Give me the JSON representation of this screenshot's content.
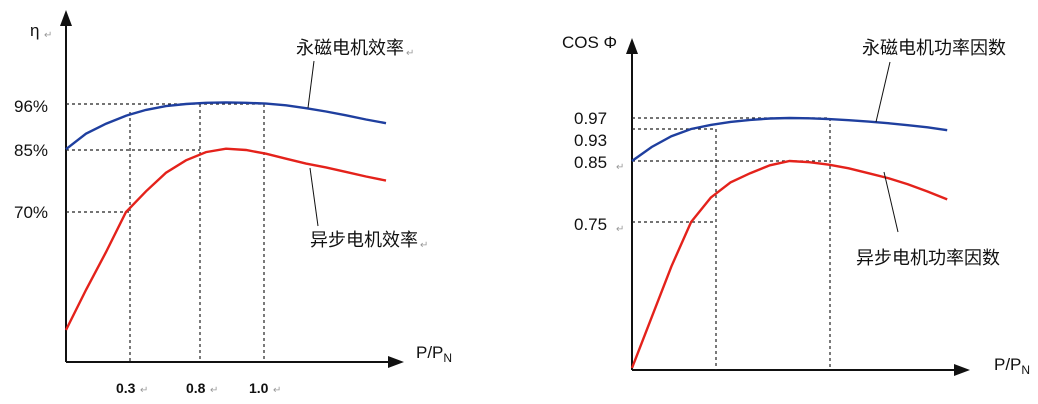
{
  "chart_data": [
    {
      "type": "line",
      "ylabel": "η",
      "xlabel": "P/P",
      "xlabel_sub": "N",
      "x_ticks": [
        "0.3",
        "0.8",
        "1.0"
      ],
      "y_ticks": [
        "96%",
        "85%",
        "70%"
      ],
      "series": [
        {
          "name": "永磁电机效率",
          "color": "#1f3f9f",
          "x": [
            0.0,
            0.1,
            0.2,
            0.3,
            0.4,
            0.5,
            0.6,
            0.7,
            0.8,
            0.9,
            1.0,
            1.1,
            1.2,
            1.3,
            1.4,
            1.5,
            1.6
          ],
          "y": [
            85.2,
            88.9,
            91.3,
            93.2,
            94.6,
            95.5,
            96.0,
            96.3,
            96.4,
            96.3,
            96.1,
            95.7,
            95.0,
            94.2,
            93.3,
            92.3,
            91.4
          ]
        },
        {
          "name": "异步电机效率",
          "color": "#e4221b",
          "x": [
            0.0,
            0.1,
            0.2,
            0.3,
            0.4,
            0.5,
            0.6,
            0.7,
            0.8,
            0.9,
            1.0,
            1.1,
            1.2,
            1.3,
            1.4,
            1.5,
            1.6
          ],
          "y": [
            45.0,
            53.5,
            61.5,
            70.0,
            75.0,
            79.5,
            82.5,
            84.5,
            85.3,
            85.0,
            84.1,
            82.9,
            81.7,
            80.8,
            79.7,
            78.6,
            77.6
          ]
        }
      ]
    },
    {
      "type": "line",
      "ylabel": "COS Φ",
      "xlabel": "P/P",
      "xlabel_sub": "N",
      "x_ticks": [],
      "y_ticks": [
        "0.97",
        "0.93",
        "0.85",
        "0.75"
      ],
      "series": [
        {
          "name": "永磁电机功率因数",
          "color": "#1f3f9f",
          "x": [
            0.0,
            0.1,
            0.2,
            0.3,
            0.4,
            0.5,
            0.6,
            0.7,
            0.8,
            0.9,
            1.0,
            1.1,
            1.2,
            1.3,
            1.4,
            1.5,
            1.6
          ],
          "y": [
            0.85,
            0.885,
            0.912,
            0.93,
            0.945,
            0.956,
            0.963,
            0.968,
            0.97,
            0.969,
            0.966,
            0.962,
            0.957,
            0.951,
            0.944,
            0.936,
            0.927
          ]
        },
        {
          "name": "异步电机功率因数",
          "color": "#e4221b",
          "x": [
            0.0,
            0.1,
            0.2,
            0.3,
            0.4,
            0.5,
            0.6,
            0.7,
            0.8,
            0.9,
            1.0,
            1.1,
            1.2,
            1.3,
            1.4,
            1.5,
            1.6
          ],
          "y": [
            0.52,
            0.6,
            0.68,
            0.75,
            0.79,
            0.815,
            0.83,
            0.843,
            0.85,
            0.848,
            0.844,
            0.838,
            0.83,
            0.822,
            0.812,
            0.8,
            0.787
          ]
        }
      ]
    }
  ]
}
